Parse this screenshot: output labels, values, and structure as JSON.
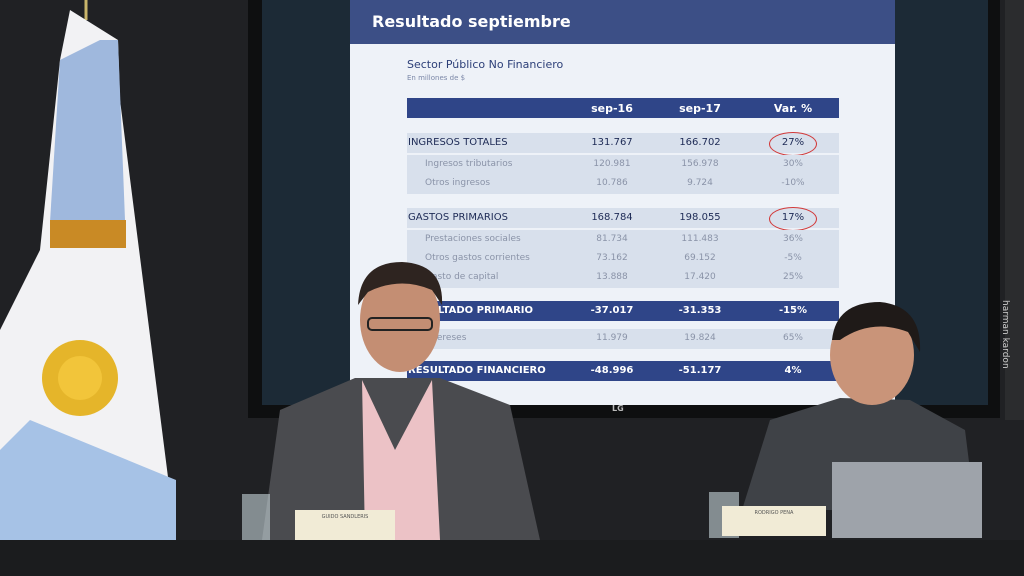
{
  "screen": {
    "title": "Resultado septiembre",
    "subtitle": "Sector Público No Financiero",
    "unit_note": "En millones de $",
    "table": {
      "header": [
        "sep-16",
        "sep-17",
        "Var. %"
      ],
      "rows": [
        [
          "INGRESOS TOTALES",
          "131.767",
          "166.702",
          "27%"
        ],
        [
          "Ingresos tributarios",
          "120.981",
          "156.978",
          "30%"
        ],
        [
          "Otros ingresos",
          "10.786",
          "9.724",
          "-10%"
        ],
        [
          "GASTOS PRIMARIOS",
          "168.784",
          "198.055",
          "17%"
        ],
        [
          "Prestaciones sociales",
          "81.734",
          "111.483",
          "36%"
        ],
        [
          "Otros gastos corrientes",
          "73.162",
          "69.152",
          "-5%"
        ],
        [
          "Gasto de capital",
          "13.888",
          "17.420",
          "25%"
        ],
        [
          "RESULTADO PRIMARIO",
          "-37.017",
          "-31.353",
          "-15%"
        ],
        [
          "Intereses",
          "11.979",
          "19.824",
          "65%"
        ],
        [
          "RESULTADO FINANCIERO",
          "-48.996",
          "-51.177",
          "4%"
        ]
      ]
    }
  },
  "brand": "LG",
  "speaker_brand": "harman kardon",
  "nameplates": [
    "GUIDO SANDLERIS",
    "RODRIGO PENA"
  ]
}
